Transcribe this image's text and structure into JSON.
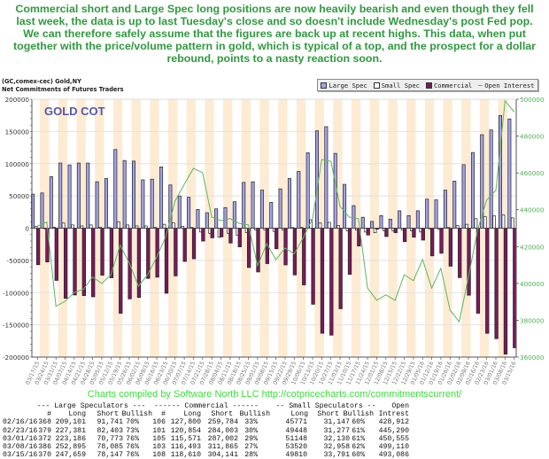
{
  "commentary": "Commercial short and Large Spec long positions are now heavily bearish and even though they fell last week, the data is up to last Tuesday's close and so doesn't include Wednesday's post Fed pop. We can therefore safely assume that the figures are back up at recent highs. This data, when put together with the price/volume pattern in gold, which is typical of a top, and the prospect for a dollar rebound, points to a nasty reaction soon.",
  "header": {
    "symbol": "(GC,comex-cec) Gold,NY",
    "subtitle": "Net Commitments of Futures Traders"
  },
  "legend": [
    {
      "label": "Large Spec",
      "color": "#a3a3e8"
    },
    {
      "label": "Small Spec",
      "color": "#ffffff"
    },
    {
      "label": "Commercial",
      "color": "#7b1a5c"
    },
    {
      "label": "Open Interest",
      "color": "#5cb85c"
    }
  ],
  "chart_data": {
    "type": "bar",
    "title": "GOLD COT",
    "categories": [
      "03/17/15",
      "03/24/15",
      "03/31/15",
      "04/07/15",
      "04/14/15",
      "04/21/15",
      "04/28/15",
      "05/05/15",
      "05/12/15",
      "05/19/15",
      "05/26/15",
      "06/02/15",
      "06/09/15",
      "06/16/15",
      "06/23/15",
      "06/30/15",
      "07/07/15",
      "07/14/15",
      "07/21/15",
      "07/28/15",
      "08/04/15",
      "08/11/15",
      "08/18/15",
      "08/25/15",
      "09/01/15",
      "09/08/15",
      "09/15/15",
      "09/22/15",
      "09/29/15",
      "10/06/15",
      "10/13/15",
      "10/20/15",
      "10/27/15",
      "11/03/15",
      "11/10/15",
      "11/17/15",
      "11/24/15",
      "12/01/15",
      "12/08/15",
      "12/15/15",
      "12/22/15",
      "12/29/15",
      "01/05/16",
      "01/12/16",
      "01/19/16",
      "01/26/16",
      "02/02/16",
      "02/09/16",
      "02/16/16",
      "02/23/16",
      "03/01/16",
      "03/08/16",
      "03/15/16"
    ],
    "series": [
      {
        "name": "Large Spec",
        "axis": "left",
        "kind": "bar",
        "color": "#a3a3e8",
        "values": [
          52800,
          54600,
          80000,
          101000,
          98000,
          101000,
          101000,
          72000,
          77000,
          122000,
          105000,
          104000,
          75000,
          76000,
          95000,
          67000,
          50000,
          48000,
          29000,
          24000,
          30000,
          32000,
          41000,
          71000,
          72000,
          59000,
          40000,
          61000,
          77000,
          88000,
          117000,
          151000,
          157500,
          116000,
          68000,
          35000,
          17000,
          10500,
          19500,
          14000,
          27000,
          19500,
          27000,
          45000,
          44000,
          59000,
          73000,
          98500,
          117360,
          144978,
          152413,
          174810,
          169512
        ]
      },
      {
        "name": "Small Spec",
        "axis": "left",
        "kind": "bar",
        "color": "#ffffff",
        "values": [
          3000,
          -1000,
          1500,
          8000,
          5000,
          3500,
          5000,
          1500,
          1000,
          10000,
          5000,
          3500,
          3500,
          1000,
          6000,
          8000,
          3000,
          1000,
          -6000,
          -8000,
          -14000,
          -8000,
          -11000,
          -7000,
          -3000,
          -3000,
          -5000,
          -3000,
          1000,
          1000,
          13000,
          8000,
          9000,
          4000,
          -4000,
          -3000,
          -6000,
          -7000,
          -4000,
          -4000,
          -3000,
          -4000,
          -6000,
          -1000,
          -2000,
          1000,
          4000,
          6000,
          14624,
          18171,
          19018,
          20562,
          16019
        ]
      },
      {
        "name": "Commercial",
        "axis": "left",
        "kind": "bar",
        "color": "#7b1a5c",
        "values": [
          -56700,
          -52500,
          -81000,
          -108800,
          -103700,
          -104600,
          -106500,
          -73000,
          -77000,
          -132000,
          -109700,
          -107400,
          -78000,
          -76000,
          -101000,
          -74000,
          -51600,
          -47500,
          -20000,
          -15000,
          -13500,
          -23000,
          -29000,
          -61000,
          -68000,
          -55000,
          -32000,
          -57000,
          -72500,
          -88000,
          -118000,
          -163000,
          -166000,
          -125000,
          -71600,
          -27700,
          -10600,
          -1500,
          -13000,
          -7000,
          -21000,
          -14000,
          -18500,
          -43000,
          -39000,
          -59000,
          -76700,
          -104000,
          -131984,
          -163149,
          -171431,
          -195372,
          -185531
        ]
      },
      {
        "name": "Open Interest",
        "axis": "right",
        "kind": "line",
        "color": "#5cb85c",
        "values": [
          431200,
          433300,
          387600,
          390300,
          395100,
          396800,
          403500,
          400000,
          404700,
          420800,
          411100,
          398500,
          404700,
          414400,
          425600,
          444800,
          453800,
          462500,
          460100,
          436000,
          434100,
          435200,
          432600,
          431800,
          409600,
          421600,
          412900,
          419200,
          416000,
          425000,
          435200,
          467300,
          466300,
          441800,
          436000,
          435200,
          397500,
          390800,
          393800,
          390800,
          404700,
          401500,
          413100,
          397500,
          408200,
          385500,
          379200,
          403300,
          428912,
          445290,
          450555,
          499110,
          493086
        ]
      }
    ],
    "left_axis": {
      "ylim": [
        -200000,
        200000
      ],
      "ticks": [
        "200000",
        "150000",
        "100000",
        "50000",
        "0",
        "-50000",
        "-100000",
        "-150000",
        "-200000"
      ]
    },
    "right_axis": {
      "ylim": [
        360000,
        500000
      ],
      "ticks": [
        "500000",
        "480000",
        "460000",
        "440000",
        "420000",
        "400000",
        "380000",
        "360000"
      ],
      "color": "#4caf50"
    },
    "grid": true,
    "alternating_column_shading": "#fdebd3",
    "legend_position": "top-right"
  },
  "credit": "Charts compiled by Software North LLC  http://cotpricecharts.com/commitmentscurrent/",
  "table": {
    "group_headers": [
      "--- Large Speculators ---",
      "------ Commercial ------",
      "-- Small Speculators --",
      "Open"
    ],
    "columns": [
      "#",
      "Long",
      "Short",
      "Bullish",
      "#",
      "Long",
      "Short",
      "Bullish",
      "Long",
      "Short",
      "Bullish",
      "Intrest"
    ],
    "rows": [
      [
        "02/16/16",
        "368",
        "209,101",
        "91,741",
        "70%",
        "106",
        "127,800",
        "259,784",
        "33%",
        "45771",
        "31,147",
        "60%",
        "428,912"
      ],
      [
        "02/23/16",
        "379",
        "227,381",
        "82,403",
        "73%",
        "101",
        "120,854",
        "284,003",
        "30%",
        "49448",
        "31,277",
        "61%",
        "445,290"
      ],
      [
        "03/01/16",
        "372",
        "223,186",
        "70,773",
        "76%",
        "105",
        "115,571",
        "287,002",
        "29%",
        "51148",
        "32,130",
        "61%",
        "450,555"
      ],
      [
        "03/08/16",
        "386",
        "252,895",
        "78,085",
        "76%",
        "103",
        "116,493",
        "311,865",
        "27%",
        "53520",
        "32,958",
        "62%",
        "499,110"
      ],
      [
        "03/15/16",
        "370",
        "247,659",
        "78,147",
        "76%",
        "108",
        "118,610",
        "304,141",
        "28%",
        "49810",
        "33,791",
        "60%",
        "493,086"
      ]
    ]
  }
}
